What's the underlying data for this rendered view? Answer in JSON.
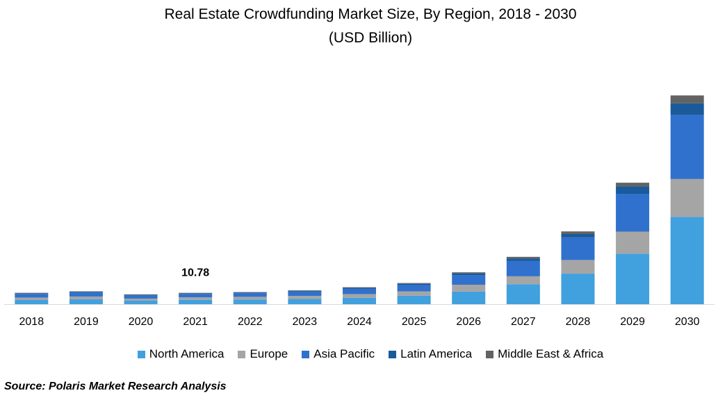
{
  "title": "Real Estate Crowdfunding Market Size, By Region, 2018 - 2030",
  "subtitle": "(USD Billion)",
  "source": "Source: Polaris  Market Research Analysis",
  "chart_data": {
    "type": "bar",
    "stacked": true,
    "categories": [
      "2018",
      "2019",
      "2020",
      "2021",
      "2022",
      "2023",
      "2024",
      "2025",
      "2026",
      "2027",
      "2028",
      "2029",
      "2030"
    ],
    "series": [
      {
        "name": "North America",
        "color": "#41A0DE",
        "values": [
          4.0,
          4.6,
          3.3,
          4.1,
          4.4,
          5.0,
          6.0,
          8.0,
          12.0,
          19.0,
          29.0,
          48.0,
          83.0
        ]
      },
      {
        "name": "Europe",
        "color": "#A5A5A5",
        "values": [
          2.3,
          2.7,
          2.0,
          2.4,
          2.6,
          2.9,
          3.6,
          4.2,
          6.5,
          7.5,
          13.0,
          21.0,
          36.0
        ]
      },
      {
        "name": "Asia Pacific",
        "color": "#3071CE",
        "values": [
          3.5,
          3.9,
          3.1,
          3.3,
          3.5,
          4.1,
          5.0,
          6.0,
          9.0,
          14.5,
          21.5,
          36.0,
          61.0
        ]
      },
      {
        "name": "Latin America",
        "color": "#1A5A9A",
        "values": [
          0.6,
          0.6,
          0.5,
          0.6,
          0.6,
          0.7,
          0.9,
          1.2,
          1.8,
          2.5,
          3.2,
          7.0,
          11.0
        ]
      },
      {
        "name": "Middle East & Africa",
        "color": "#636363",
        "values": [
          0.4,
          0.4,
          0.4,
          0.38,
          0.4,
          0.5,
          0.6,
          0.7,
          1.0,
          1.5,
          2.5,
          3.5,
          7.5
        ]
      }
    ],
    "annotations": [
      {
        "category": "2021",
        "label": "10.78"
      }
    ],
    "ylim": [
      0,
      210
    ],
    "legend_position": "bottom",
    "grid": false
  }
}
